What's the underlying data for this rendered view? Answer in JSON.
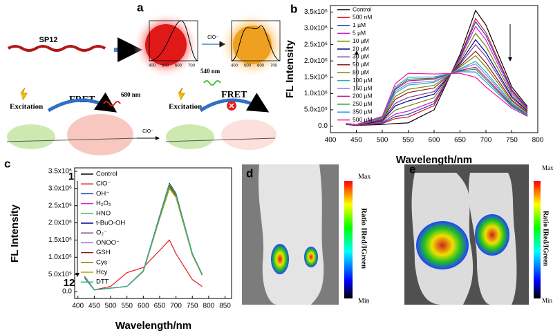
{
  "chart_data": [
    {
      "type": "line",
      "x_label": "Wavelength/nm",
      "y_label": "FL Intensity",
      "xlim": [
        400,
        800
      ],
      "xticks": [
        400,
        450,
        500,
        550,
        600,
        650,
        700,
        750,
        800
      ],
      "ylim": [
        -200000,
        3700000
      ],
      "yticks": [
        {
          "value": 0,
          "label": "0.0"
        },
        {
          "value": 500000,
          "label": "5.0x10⁵"
        },
        {
          "value": 1000000,
          "label": "1.0x10⁶"
        },
        {
          "value": 1500000,
          "label": "1.5x10⁶"
        },
        {
          "value": 2000000,
          "label": "2.0x10⁶"
        },
        {
          "value": 2500000,
          "label": "2.5x10⁶"
        },
        {
          "value": 3000000,
          "label": "3.0x10⁶"
        },
        {
          "value": 3500000,
          "label": "3.5x10⁶"
        }
      ],
      "x": [
        430,
        450,
        500,
        525,
        550,
        600,
        650,
        680,
        700,
        750,
        780
      ],
      "series": [
        {
          "name": "Control",
          "color": "#000000",
          "values": [
            50000,
            20000,
            50000,
            80000,
            100000,
            500000,
            2200000,
            3550000,
            3100000,
            1200000,
            600000
          ]
        },
        {
          "name": "500 nM",
          "color": "#e41a1c",
          "values": [
            50000,
            20000,
            80000,
            230000,
            280000,
            630000,
            2130000,
            3300000,
            2870000,
            1120000,
            560000
          ]
        },
        {
          "name": "1 µM",
          "color": "#1f3fbf",
          "values": [
            60000,
            30000,
            90000,
            290000,
            360000,
            690000,
            2100000,
            3200000,
            2780000,
            1090000,
            550000
          ]
        },
        {
          "name": "5 µM",
          "color": "#d020d0",
          "values": [
            60000,
            30000,
            110000,
            370000,
            460000,
            760000,
            2060000,
            3060000,
            2640000,
            1040000,
            530000
          ]
        },
        {
          "name": "10 µM",
          "color": "#6a8a00",
          "values": [
            60000,
            30000,
            140000,
            490000,
            620000,
            870000,
            2000000,
            2850000,
            2450000,
            980000,
            500000
          ]
        },
        {
          "name": "20 µM",
          "color": "#00008b",
          "values": [
            60000,
            30000,
            160000,
            620000,
            770000,
            980000,
            1940000,
            2650000,
            2260000,
            910000,
            470000
          ]
        },
        {
          "name": "30 µM",
          "color": "#7b3fa0",
          "values": [
            70000,
            40000,
            180000,
            700000,
            880000,
            1060000,
            1900000,
            2500000,
            2130000,
            870000,
            450000
          ]
        },
        {
          "name": "50 µM",
          "color": "#8b1a1a",
          "values": [
            70000,
            40000,
            200000,
            820000,
            1030000,
            1170000,
            1850000,
            2300000,
            1940000,
            800000,
            420000
          ]
        },
        {
          "name": "80 µM",
          "color": "#808000",
          "values": [
            70000,
            40000,
            220000,
            910000,
            1130000,
            1250000,
            1810000,
            2160000,
            1810000,
            760000,
            400000
          ]
        },
        {
          "name": "100 µM",
          "color": "#20b2aa",
          "values": [
            70000,
            40000,
            240000,
            1010000,
            1260000,
            1340000,
            1760000,
            1990000,
            1660000,
            710000,
            370000
          ]
        },
        {
          "name": "150 µM",
          "color": "#7f7fff",
          "values": [
            70000,
            40000,
            250000,
            1060000,
            1320000,
            1380000,
            1740000,
            1910000,
            1580000,
            680000,
            360000
          ]
        },
        {
          "name": "200 µM",
          "color": "#c71585",
          "values": [
            80000,
            50000,
            260000,
            1120000,
            1390000,
            1440000,
            1710000,
            1810000,
            1490000,
            650000,
            350000
          ]
        },
        {
          "name": "250 µM",
          "color": "#228b22",
          "values": [
            80000,
            50000,
            270000,
            1150000,
            1440000,
            1470000,
            1690000,
            1750000,
            1430000,
            630000,
            340000
          ]
        },
        {
          "name": "350 µM",
          "color": "#1e90ff",
          "values": [
            80000,
            50000,
            280000,
            1200000,
            1500000,
            1510000,
            1670000,
            1660000,
            1350000,
            600000,
            320000
          ]
        },
        {
          "name": "500 µM",
          "color": "#ff1493",
          "values": [
            80000,
            50000,
            300000,
            1300000,
            1620000,
            1600000,
            1620000,
            1500000,
            1200000,
            550000,
            300000
          ]
        }
      ]
    },
    {
      "type": "line",
      "x_label": "Wavelength/nm",
      "y_label": "FL Intensity",
      "xlim": [
        390,
        870
      ],
      "xticks": [
        400,
        450,
        500,
        550,
        600,
        650,
        700,
        750,
        800,
        850
      ],
      "ylim": [
        -200000,
        3600000
      ],
      "yticks": [
        {
          "value": 0,
          "label": "0.0"
        },
        {
          "value": 500000,
          "label": "5.0x10⁵"
        },
        {
          "value": 1000000,
          "label": "1.0x10⁶"
        },
        {
          "value": 1500000,
          "label": "1.5x10⁶"
        },
        {
          "value": 2000000,
          "label": "2.0x10⁶"
        },
        {
          "value": 2500000,
          "label": "2.5x10⁶"
        },
        {
          "value": 3000000,
          "label": "3.0x10⁶"
        },
        {
          "value": 3500000,
          "label": "3.5x10⁶"
        }
      ],
      "annotations": [
        "1",
        "12"
      ],
      "x": [
        420,
        450,
        500,
        550,
        600,
        650,
        680,
        700,
        750,
        780
      ],
      "series": [
        {
          "name": "Control",
          "color": "#000000",
          "values": [
            450000,
            50000,
            100000,
            150000,
            600000,
            2200000,
            3150000,
            2850000,
            1100000,
            500000
          ]
        },
        {
          "name": "ClO⁻",
          "color": "#e41a1c",
          "values": [
            400000,
            50000,
            150000,
            550000,
            700000,
            1200000,
            1500000,
            1100000,
            350000,
            150000
          ]
        },
        {
          "name": "OH⁻",
          "color": "#1f3fbf",
          "values": [
            450000,
            50000,
            100000,
            150000,
            600000,
            2180000,
            3100000,
            2800000,
            1100000,
            500000
          ]
        },
        {
          "name": "H₂O₂",
          "color": "#d020d0",
          "values": [
            440000,
            50000,
            100000,
            150000,
            590000,
            2150000,
            3050000,
            2770000,
            1080000,
            490000
          ]
        },
        {
          "name": "HNO",
          "color": "#3cb371",
          "values": [
            450000,
            50000,
            100000,
            150000,
            580000,
            2120000,
            3000000,
            2740000,
            1060000,
            480000
          ]
        },
        {
          "name": "t-BuO-OH",
          "color": "#00008b",
          "values": [
            450000,
            50000,
            100000,
            150000,
            600000,
            2190000,
            3120000,
            2820000,
            1100000,
            500000
          ]
        },
        {
          "name": "O₂⁻",
          "color": "#7b3fa0",
          "values": [
            440000,
            50000,
            100000,
            150000,
            600000,
            2160000,
            3080000,
            2790000,
            1090000,
            490000
          ]
        },
        {
          "name": "ONOO⁻",
          "color": "#9370db",
          "values": [
            440000,
            50000,
            100000,
            150000,
            590000,
            2130000,
            3020000,
            2750000,
            1070000,
            480000
          ]
        },
        {
          "name": "GSH",
          "color": "#8b1a1a",
          "values": [
            450000,
            50000,
            100000,
            150000,
            600000,
            2170000,
            3100000,
            2800000,
            1100000,
            500000
          ]
        },
        {
          "name": "Cys",
          "color": "#808000",
          "values": [
            440000,
            50000,
            100000,
            150000,
            590000,
            2150000,
            3050000,
            2770000,
            1080000,
            490000
          ]
        },
        {
          "name": "Hcy",
          "color": "#b8a000",
          "values": [
            450000,
            50000,
            100000,
            150000,
            580000,
            2120000,
            3000000,
            2740000,
            1060000,
            480000
          ]
        },
        {
          "name": "DTT",
          "color": "#20b2aa",
          "values": [
            450000,
            50000,
            100000,
            150000,
            600000,
            2180000,
            3130000,
            2830000,
            1100000,
            500000
          ]
        }
      ]
    }
  ],
  "panels": {
    "a": {
      "label": "a",
      "polymer": "SP12",
      "oxidant": "ClO⁻",
      "inset_ticks": [
        "400",
        "500",
        "600",
        "700"
      ],
      "fret": "FRET",
      "emission_red": "680 nm",
      "emission_green": "540 nm",
      "excitation": "Excitation"
    },
    "b": {
      "label": "b"
    },
    "c": {
      "label": "c"
    },
    "d": {
      "label": "d",
      "max": "Max",
      "min": "Min",
      "ratio": "Ratio IRed/IGreen"
    },
    "e": {
      "label": "e",
      "max": "Max",
      "min": "Min",
      "ratio": "Ratio IRed/IGreen"
    }
  }
}
